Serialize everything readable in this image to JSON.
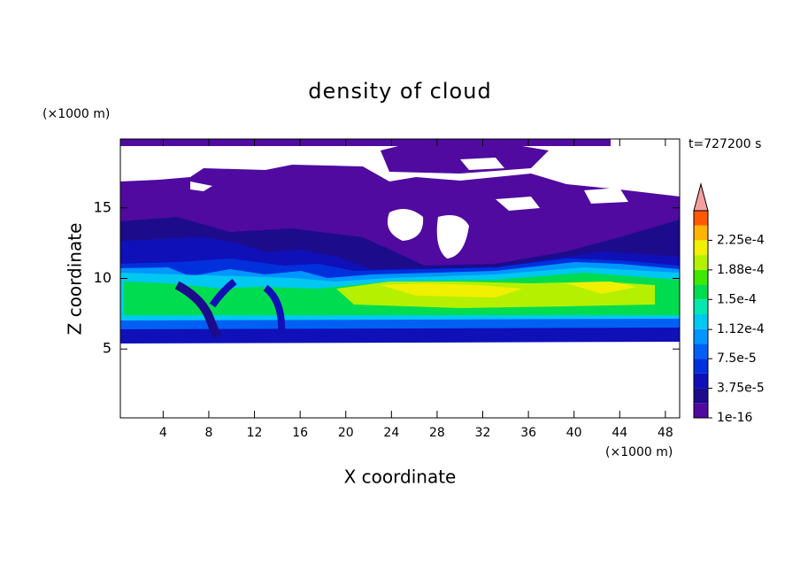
{
  "chart_data": {
    "type": "contour",
    "title": "density of cloud",
    "x_label": "X coordinate",
    "y_label": "Z coordinate",
    "x_unit": "(×1000 m)",
    "y_unit": "(×1000 m)",
    "time_label": "t=727200 s",
    "xlim": [
      0.25,
      49.25
    ],
    "ylim": [
      0.125,
      19.875
    ],
    "xticks": [
      4,
      8,
      12,
      16,
      20,
      24,
      28,
      32,
      36,
      40,
      44,
      48
    ],
    "yticks": [
      5,
      10,
      15
    ],
    "colorbar": {
      "clim": [
        0,
        0.0002625
      ],
      "levels": [
        0,
        1.875e-05,
        3.75e-05,
        5.625e-05,
        7.5e-05,
        9.375e-05,
        0.0001125,
        0.00013125,
        0.00015,
        0.00016875,
        0.0001875,
        0.00020625,
        0.000225,
        0.00024375
      ],
      "colors": [
        "#500aa0",
        "#1c0c8c",
        "#1010b8",
        "#0030dc",
        "#0060f4",
        "#0096ff",
        "#00c8f0",
        "#00e8b0",
        "#00dc50",
        "#40e800",
        "#b4f000",
        "#f0f000",
        "#ffb400",
        "#ff5a00"
      ],
      "extend_color": "#f4a0a0",
      "ticks": [
        {
          "value": 0,
          "label": "1e-16"
        },
        {
          "value": 3.75e-05,
          "label": "3.75e-5"
        },
        {
          "value": 7.5e-05,
          "label": "7.5e-5"
        },
        {
          "value": 0.000112,
          "label": "1.12e-4"
        },
        {
          "value": 0.00015,
          "label": "1.5e-4"
        },
        {
          "value": 0.0001875,
          "label": "1.88e-4"
        },
        {
          "value": 0.000225,
          "label": "2.25e-4"
        }
      ]
    }
  }
}
